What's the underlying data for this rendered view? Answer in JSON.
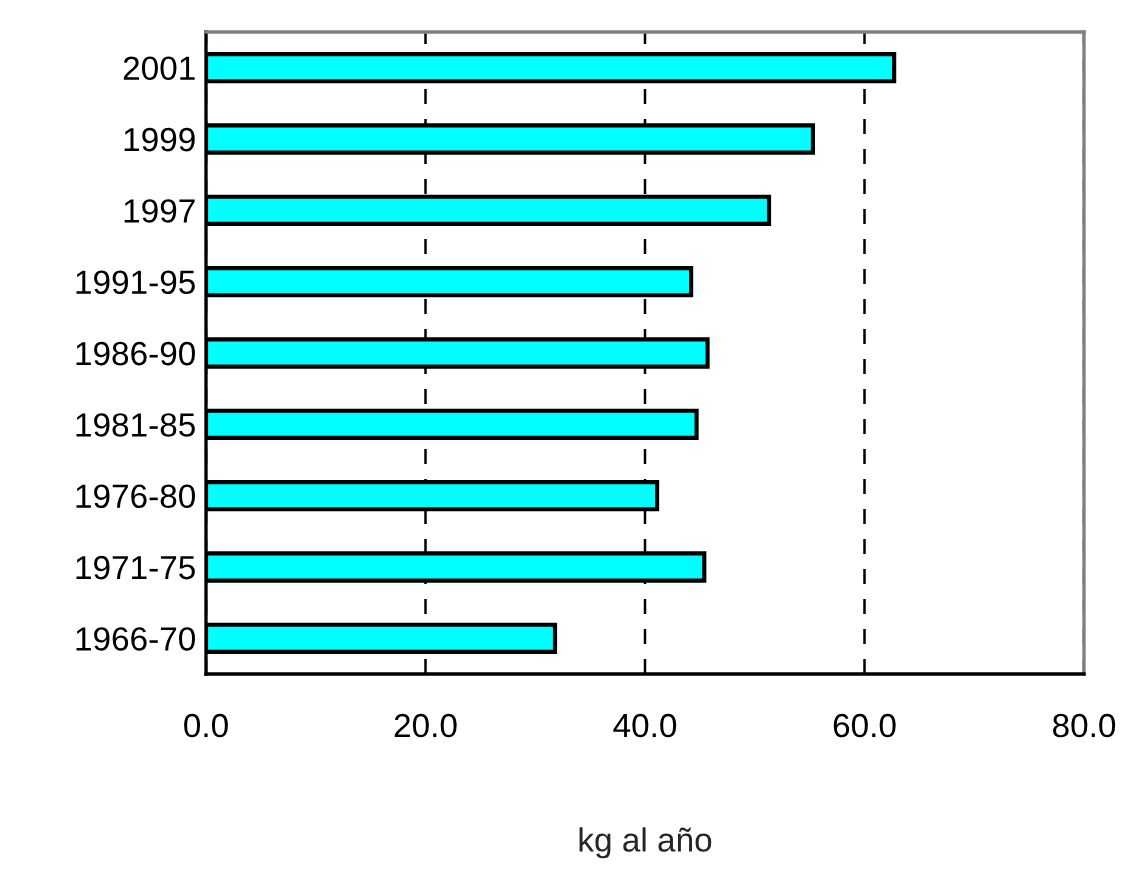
{
  "chart_data": {
    "type": "bar",
    "orientation": "horizontal",
    "xlabel": "kg al año",
    "categories": [
      "2001",
      "1999",
      "1997",
      "1991-95",
      "1986-90",
      "1981-85",
      "1976-80",
      "1971-75",
      "1966-70"
    ],
    "values": [
      62.7,
      55.3,
      51.3,
      44.2,
      45.7,
      44.7,
      41.1,
      45.4,
      31.8
    ],
    "color": "#00ffff",
    "xlim": [
      0,
      80
    ],
    "xticks": [
      {
        "value": 0,
        "label": "0.0"
      },
      {
        "value": 20,
        "label": "20.0"
      },
      {
        "value": 40,
        "label": "40.0"
      },
      {
        "value": 60,
        "label": "60.0"
      },
      {
        "value": 80,
        "label": "80.0"
      }
    ],
    "grid": "x",
    "legend": false
  }
}
